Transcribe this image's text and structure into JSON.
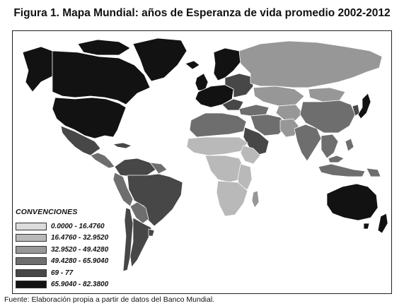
{
  "title": "Figura 1. Mapa Mundial: años de Esperanza de vida promedio 2002-2012",
  "legend": {
    "title": "CONVENCIONES",
    "items": [
      {
        "label": "0.0000 - 16.4760",
        "color": "#dcdcdc"
      },
      {
        "label": "16.4760 - 32.9520",
        "color": "#b9b9b9"
      },
      {
        "label": "32.9520 - 49.4280",
        "color": "#979797"
      },
      {
        "label": "49.4280 - 65.9040",
        "color": "#6e6e6e"
      },
      {
        "label": "69 - 77",
        "color": "#474747"
      },
      {
        "label": "65.9040 - 82.3800",
        "color": "#121212"
      }
    ]
  },
  "source": "Fuente: Elaboración propia a partir de datos del Banco Mundial."
}
